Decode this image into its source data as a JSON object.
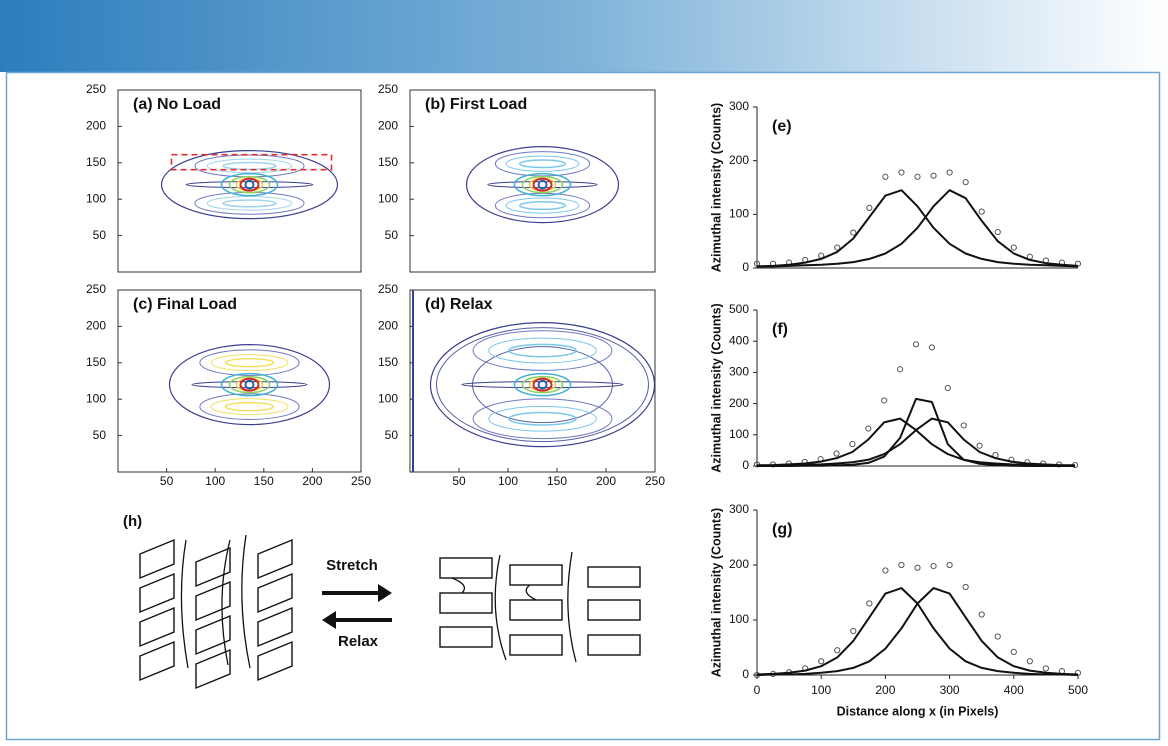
{
  "chart_data": [
    {
      "type": "contour",
      "title": "(a) No Load",
      "xlim": [
        0,
        250
      ],
      "ylim": [
        0,
        250
      ],
      "yticks": [
        50,
        100,
        150,
        200,
        250
      ]
    },
    {
      "type": "contour",
      "title": "(b) First Load",
      "xlim": [
        0,
        250
      ],
      "ylim": [
        0,
        250
      ],
      "yticks": [
        50,
        100,
        150,
        200,
        250
      ]
    },
    {
      "type": "contour",
      "title": "(c) Final Load",
      "xlim": [
        0,
        250
      ],
      "ylim": [
        0,
        250
      ],
      "xticks": [
        50,
        100,
        150,
        200,
        250
      ],
      "yticks": [
        50,
        100,
        150,
        200,
        250
      ]
    },
    {
      "type": "contour",
      "title": "(d) Relax",
      "xlim": [
        0,
        250
      ],
      "ylim": [
        0,
        250
      ],
      "xticks": [
        50,
        100,
        150,
        200,
        250
      ],
      "yticks": [
        50,
        100,
        150,
        200,
        250
      ]
    },
    {
      "type": "line",
      "title": "(e)",
      "ylabel": "Azimuthal intensity (Counts)",
      "x": [
        0,
        25,
        50,
        75,
        100,
        125,
        150,
        175,
        200,
        225,
        250,
        275,
        300,
        325,
        350,
        375,
        400,
        425,
        450,
        475,
        500
      ],
      "xlim": [
        0,
        500
      ],
      "ylim": [
        0,
        300
      ],
      "yticks": [
        0,
        100,
        200,
        300
      ],
      "series": [
        {
          "style": "points",
          "color": "#555555",
          "values": [
            8,
            8,
            10,
            15,
            23,
            38,
            66,
            112,
            170,
            178,
            170,
            172,
            178,
            160,
            105,
            67,
            38,
            21,
            14,
            10,
            8
          ]
        },
        {
          "style": "line",
          "color": "#111111",
          "values": [
            3,
            4,
            6,
            10,
            17,
            30,
            55,
            95,
            135,
            145,
            115,
            75,
            45,
            27,
            17,
            11,
            8,
            6,
            5,
            4,
            3
          ]
        },
        {
          "style": "line",
          "color": "#111111",
          "values": [
            3,
            3,
            4,
            5,
            6,
            8,
            11,
            17,
            27,
            45,
            75,
            115,
            145,
            130,
            88,
            50,
            27,
            15,
            9,
            6,
            4
          ]
        }
      ]
    },
    {
      "type": "line",
      "title": "(f)",
      "ylabel": "Azimuthal intensity (Counts)",
      "x": [
        0,
        25,
        50,
        75,
        100,
        125,
        150,
        175,
        200,
        225,
        250,
        275,
        300,
        325,
        350,
        375,
        400,
        425,
        450,
        475,
        500
      ],
      "xlim": [
        0,
        500
      ],
      "ylim": [
        0,
        500
      ],
      "yticks": [
        0,
        100,
        200,
        300,
        400,
        500
      ],
      "series": [
        {
          "style": "points",
          "color": "#555555",
          "values": [
            5,
            5,
            8,
            13,
            22,
            40,
            70,
            120,
            210,
            310,
            390,
            380,
            250,
            130,
            65,
            35,
            20,
            12,
            8,
            5,
            3
          ]
        },
        {
          "style": "line",
          "color": "#111111",
          "values": [
            2,
            3,
            5,
            8,
            14,
            25,
            45,
            85,
            140,
            152,
            115,
            70,
            38,
            20,
            12,
            8,
            5,
            4,
            3,
            2,
            2
          ]
        },
        {
          "style": "line",
          "color": "#111111",
          "values": [
            0,
            0,
            0,
            1,
            1,
            2,
            4,
            10,
            30,
            90,
            215,
            205,
            70,
            20,
            7,
            3,
            1,
            0,
            0,
            0,
            0
          ]
        },
        {
          "style": "line",
          "color": "#111111",
          "values": [
            2,
            2,
            3,
            4,
            5,
            8,
            12,
            20,
            38,
            70,
            115,
            152,
            140,
            85,
            45,
            25,
            14,
            8,
            5,
            3,
            2
          ]
        }
      ]
    },
    {
      "type": "line",
      "title": "(g)",
      "ylabel": "Azimuthal intensity (Counts)",
      "xlabel": "Distance along x (in Pixels)",
      "x": [
        0,
        25,
        50,
        75,
        100,
        125,
        150,
        175,
        200,
        225,
        250,
        275,
        300,
        325,
        350,
        375,
        400,
        425,
        450,
        475,
        500
      ],
      "xlim": [
        0,
        500
      ],
      "ylim": [
        0,
        300
      ],
      "xticks": [
        0,
        100,
        200,
        300,
        400,
        500
      ],
      "yticks": [
        0,
        100,
        200,
        300
      ],
      "series": [
        {
          "style": "points",
          "color": "#555555",
          "values": [
            0,
            2,
            5,
            12,
            25,
            45,
            80,
            130,
            190,
            200,
            195,
            198,
            200,
            160,
            110,
            70,
            42,
            25,
            12,
            7,
            4
          ]
        },
        {
          "style": "line",
          "color": "#111111",
          "values": [
            1,
            2,
            4,
            8,
            16,
            32,
            62,
            105,
            148,
            158,
            130,
            85,
            48,
            25,
            13,
            7,
            4,
            2,
            1,
            1,
            0
          ]
        },
        {
          "style": "line",
          "color": "#111111",
          "values": [
            0,
            1,
            1,
            2,
            4,
            7,
            13,
            25,
            48,
            85,
            130,
            158,
            148,
            105,
            62,
            32,
            16,
            8,
            4,
            2,
            1
          ]
        }
      ]
    }
  ],
  "diagram": {
    "label": "(h)",
    "stretch": "Stretch",
    "relax": "Relax"
  }
}
